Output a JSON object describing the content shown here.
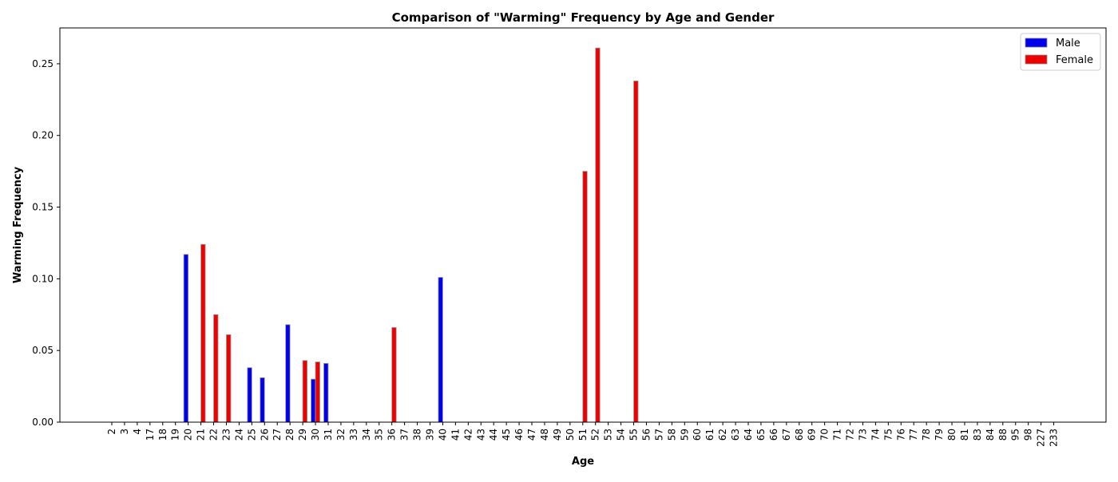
{
  "chart_data": {
    "type": "bar",
    "title": "Comparison of \"Warming\" Frequency by Age and Gender",
    "xlabel": "Age",
    "ylabel": "Warming Frequency",
    "ylim": [
      0,
      0.275
    ],
    "yticks": [
      "0.00",
      "0.05",
      "0.10",
      "0.15",
      "0.20",
      "0.25"
    ],
    "ytick_values": [
      0,
      0.05,
      0.1,
      0.15,
      0.2,
      0.25
    ],
    "grid": false,
    "legend_position": "top-right",
    "categories": [
      "2",
      "3",
      "4",
      "17",
      "18",
      "19",
      "20",
      "21",
      "22",
      "23",
      "24",
      "25",
      "26",
      "27",
      "28",
      "29",
      "30",
      "31",
      "32",
      "33",
      "34",
      "35",
      "36",
      "37",
      "38",
      "39",
      "40",
      "41",
      "42",
      "43",
      "44",
      "45",
      "46",
      "47",
      "48",
      "49",
      "50",
      "51",
      "52",
      "53",
      "54",
      "55",
      "56",
      "57",
      "58",
      "59",
      "60",
      "61",
      "62",
      "63",
      "64",
      "65",
      "66",
      "67",
      "68",
      "69",
      "70",
      "71",
      "72",
      "73",
      "74",
      "75",
      "76",
      "77",
      "78",
      "79",
      "80",
      "81",
      "83",
      "84",
      "88",
      "95",
      "98",
      "227",
      "233"
    ],
    "series": [
      {
        "name": "Male",
        "color": "#0000ee",
        "values": [
          0,
          0,
          0,
          0,
          0,
          0,
          0.117,
          0,
          0,
          0,
          0,
          0.038,
          0.031,
          0,
          0.068,
          0,
          0.03,
          0.041,
          0,
          0,
          0,
          0,
          0,
          0,
          0,
          0,
          0.101,
          0,
          0,
          0,
          0,
          0,
          0,
          0,
          0,
          0,
          0,
          0,
          0,
          0,
          0,
          0,
          0,
          0,
          0,
          0,
          0,
          0,
          0,
          0,
          0,
          0,
          0,
          0,
          0,
          0,
          0,
          0,
          0,
          0,
          0,
          0,
          0,
          0,
          0,
          0,
          0,
          0,
          0,
          0,
          0,
          0,
          0,
          0,
          0
        ]
      },
      {
        "name": "Female",
        "color": "#ee0000",
        "values": [
          0,
          0,
          0,
          0,
          0,
          0,
          0,
          0.124,
          0.075,
          0.061,
          0,
          0,
          0,
          0,
          0,
          0.043,
          0.042,
          0,
          0,
          0,
          0,
          0,
          0.066,
          0,
          0,
          0,
          0,
          0,
          0,
          0,
          0,
          0,
          0,
          0,
          0,
          0,
          0,
          0.175,
          0.261,
          0,
          0,
          0.238,
          0,
          0,
          0,
          0,
          0,
          0,
          0,
          0,
          0,
          0,
          0,
          0,
          0,
          0,
          0,
          0,
          0,
          0,
          0,
          0,
          0,
          0,
          0,
          0,
          0,
          0,
          0,
          0,
          0,
          0,
          0,
          0,
          0
        ]
      }
    ]
  }
}
